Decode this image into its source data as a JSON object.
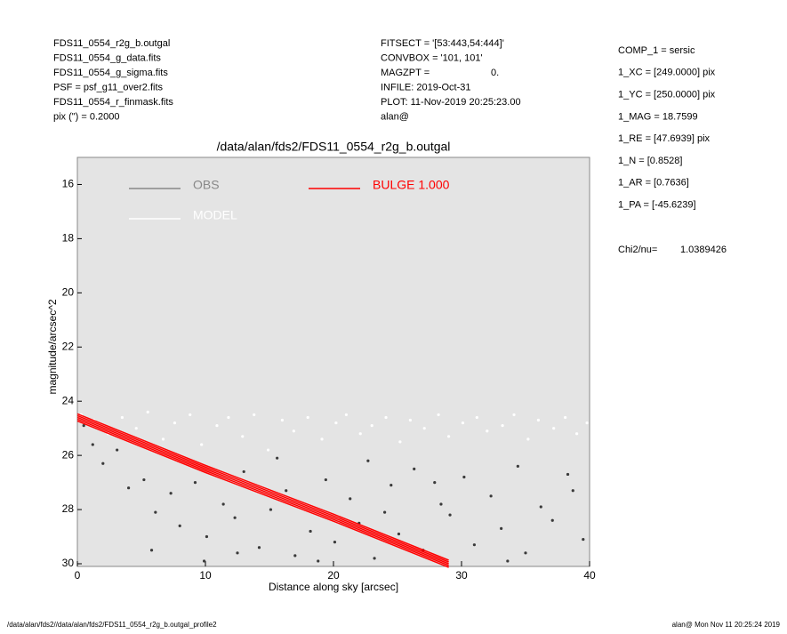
{
  "header": {
    "left": [
      "FDS11_0554_r2g_b.outgal",
      "FDS11_0554_g_data.fits",
      "FDS11_0554_g_sigma.fits",
      "PSF    = psf_g11_over2.fits",
      "FDS11_0554_r_finmask.fits",
      "pix (\") =  0.2000"
    ],
    "middle": [
      "FITSECT = '[53:443,54:444]'",
      "CONVBOX = '101, 101'",
      "MAGZPT  =",
      "INFILE: 2019-Oct-31",
      "PLOT: 11-Nov-2019 20:25:23.00",
      "alan@"
    ],
    "magzpt_value": "0.",
    "right": [
      "COMP_1  = sersic",
      "1_XC    = [249.0000] pix",
      "1_YC    = [250.0000] pix",
      "1_MAG   = 18.7599",
      "1_RE    = [47.6939] pix",
      "1_N     = [0.8528]",
      "1_AR    = [0.7636]",
      "1_PA    = [-45.6239]"
    ],
    "chi2_label": "Chi2/nu=",
    "chi2_value": "1.0389426"
  },
  "footer": {
    "left": "/data/alan/fds2//data/alan/fds2/FDS11_0554_r2g_b.outgal_profile2",
    "right": "alan@  Mon Nov 11 20:25:24 2019"
  },
  "chart_data": {
    "type": "scatter",
    "title": "/data/alan/fds2/FDS11_0554_r2g_b.outgal",
    "x_label": "Distance along sky [arcsec]",
    "y_label": "magnitude/arcsec^2",
    "xlim": [
      0,
      40
    ],
    "xticks": [
      0,
      10,
      20,
      30,
      40
    ],
    "ylim": [
      15,
      30
    ],
    "yticks": [
      16,
      18,
      20,
      22,
      24,
      26,
      28,
      30
    ],
    "y_reversed": true,
    "background": "#e4e4e4",
    "series": [
      {
        "name": "OBS",
        "color": "#888888",
        "point_color": "#3a3a3a",
        "x": [
          0.5,
          1.2,
          2.0,
          3.1,
          4.0,
          5.2,
          6.1,
          7.3,
          8.0,
          9.2,
          10.1,
          11.4,
          12.3,
          13.0,
          14.2,
          15.1,
          16.3,
          17.0,
          18.2,
          19.4,
          20.1,
          21.3,
          22.0,
          23.2,
          24.5,
          25.1,
          26.3,
          27.0,
          28.4,
          29.1,
          30.2,
          31.0,
          32.3,
          33.1,
          34.4,
          35.0,
          36.2,
          37.1,
          38.3,
          39.5,
          12.5,
          18.8,
          22.7,
          27.9,
          33.6,
          38.7,
          5.8,
          9.9,
          15.6,
          24.0
        ],
        "values": [
          24.9,
          25.6,
          26.3,
          25.8,
          27.2,
          26.9,
          28.1,
          27.4,
          28.6,
          27.0,
          29.0,
          27.8,
          28.3,
          26.6,
          29.4,
          28.0,
          27.3,
          29.7,
          28.8,
          26.9,
          29.2,
          27.6,
          28.5,
          29.8,
          27.1,
          28.9,
          26.5,
          29.5,
          27.8,
          28.2,
          26.8,
          29.3,
          27.5,
          28.7,
          26.4,
          29.6,
          27.9,
          28.4,
          26.7,
          29.1,
          29.6,
          29.9,
          26.2,
          27.0,
          29.9,
          27.3,
          29.5,
          29.9,
          26.1,
          28.1
        ]
      },
      {
        "name": "MODEL",
        "color": "#ffffff",
        "point_color": "#ffffff",
        "x": [
          0.3,
          1.3,
          2.4,
          3.5,
          4.6,
          5.5,
          6.7,
          7.6,
          8.8,
          9.7,
          10.9,
          11.8,
          12.9,
          13.8,
          14.9,
          16.0,
          16.9,
          18.0,
          19.1,
          20.2,
          21.0,
          22.1,
          23.0,
          24.1,
          25.2,
          26.0,
          27.1,
          28.2,
          29.0,
          30.1,
          31.2,
          32.0,
          33.2,
          34.1,
          35.2,
          36.0,
          37.2,
          38.1,
          39.0,
          39.8
        ],
        "values": [
          24.5,
          24.7,
          25.2,
          24.6,
          25.0,
          24.4,
          25.4,
          24.8,
          24.5,
          25.6,
          24.9,
          24.6,
          25.3,
          24.5,
          25.8,
          24.7,
          25.1,
          24.6,
          25.4,
          24.8,
          24.5,
          25.2,
          24.9,
          24.6,
          25.5,
          24.7,
          25.0,
          24.5,
          25.3,
          24.8,
          24.6,
          25.1,
          24.9,
          24.5,
          25.4,
          24.7,
          25.0,
          24.6,
          25.2,
          24.8
        ]
      },
      {
        "name": "BULGE  1.000",
        "color": "#ff0000",
        "point_color": "#ff0000",
        "line": true,
        "x": [
          0,
          10,
          20,
          29
        ],
        "values": [
          24.6,
          26.5,
          28.3,
          30.0
        ]
      }
    ]
  }
}
